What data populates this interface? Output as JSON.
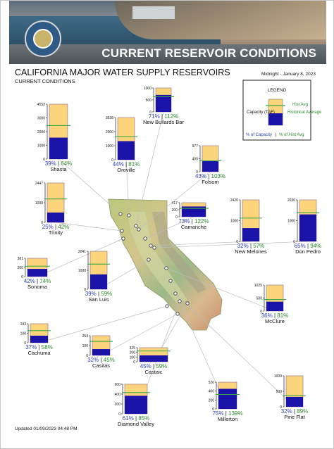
{
  "header": {
    "banner_title": "CURRENT RESERVOIR CONDITIONS",
    "seal_icon": "dwr-seal-icon"
  },
  "page": {
    "title": "CALIFORNIA MAJOR WATER SUPPLY RESERVOIRS",
    "subtitle": "CURRENT CONDITIONS",
    "date": "Midnight - January 8, 2023",
    "updated": "Updated 01/09/2023 04:48 PM"
  },
  "legend": {
    "title": "LEGEND",
    "hist_avg": "Hist Avg",
    "historical_average": "Historical Average",
    "capacity": "Capacity (TAF)",
    "pct_capacity": "% of Capacity",
    "separator": "|",
    "pct_hist_avg": "% of Hist Avg"
  },
  "colors": {
    "capacity_fill": "#fbd47c",
    "storage_fill": "#1b12a8",
    "hist_avg_line": "#3aa844",
    "pct_capacity_text": "#2d3fb5",
    "pct_hist_text": "#2c8a2c"
  },
  "chart_data": {
    "type": "bar",
    "unit": "TAF",
    "reservoirs": [
      {
        "name": "Shasta",
        "capacity": 4552,
        "ticks": [
          "4552",
          "3000",
          "2000",
          "1000",
          "0"
        ],
        "pct_capacity": 39,
        "pct_hist_avg": 64,
        "pct_capacity_label": "39%",
        "pct_hist_label": "64%"
      },
      {
        "name": "Oroville",
        "capacity": 3538,
        "ticks": [
          "3538",
          "2000",
          "1000",
          "0"
        ],
        "pct_capacity": 44,
        "pct_hist_avg": 81,
        "pct_capacity_label": "44%",
        "pct_hist_label": "81%"
      },
      {
        "name": "New Bullards Bar",
        "capacity": 1000,
        "ticks": [
          "1000",
          "500",
          "0"
        ],
        "pct_capacity": 71,
        "pct_hist_avg": 112,
        "pct_capacity_label": "71%",
        "pct_hist_label": "112%"
      },
      {
        "name": "Folsom",
        "capacity": 977,
        "ticks": [
          "977",
          "400",
          "0"
        ],
        "pct_capacity": 43,
        "pct_hist_avg": 103,
        "pct_capacity_label": "43%",
        "pct_hist_label": "103%"
      },
      {
        "name": "Trinity",
        "capacity": 2447,
        "ticks": [
          "2447",
          "1000",
          "0"
        ],
        "pct_capacity": 25,
        "pct_hist_avg": 42,
        "pct_capacity_label": "25%",
        "pct_hist_label": "42%"
      },
      {
        "name": "Camanche",
        "capacity": 417,
        "ticks": [
          "417",
          "200",
          "0"
        ],
        "pct_capacity": 73,
        "pct_hist_avg": 122,
        "pct_capacity_label": "73%",
        "pct_hist_label": "122%"
      },
      {
        "name": "New Melones",
        "capacity": 2420,
        "ticks": [
          "2420",
          "1000",
          "0"
        ],
        "pct_capacity": 32,
        "pct_hist_avg": 57,
        "pct_capacity_label": "32%",
        "pct_hist_label": "57%"
      },
      {
        "name": "Don Pedro",
        "capacity": 2030,
        "ticks": [
          "2030",
          "1000",
          "0"
        ],
        "pct_capacity": 65,
        "pct_hist_avg": 94,
        "pct_capacity_label": "65%",
        "pct_hist_label": "94%"
      },
      {
        "name": "Sonoma",
        "capacity": 381,
        "ticks": [
          "381",
          "200",
          "0"
        ],
        "pct_capacity": 42,
        "pct_hist_avg": 74,
        "pct_capacity_label": "42%",
        "pct_hist_label": "74%"
      },
      {
        "name": "San Luis",
        "capacity": 2041,
        "ticks": [
          "2041",
          "1000",
          "0"
        ],
        "pct_capacity": 39,
        "pct_hist_avg": 59,
        "pct_capacity_label": "39%",
        "pct_hist_label": "59%"
      },
      {
        "name": "McClure",
        "capacity": 1025,
        "ticks": [
          "1025",
          "500",
          "0"
        ],
        "pct_capacity": 36,
        "pct_hist_avg": 81,
        "pct_capacity_label": "36%",
        "pct_hist_label": "81%"
      },
      {
        "name": "Cachuma",
        "capacity": 193,
        "ticks": [
          "193",
          "100",
          "0"
        ],
        "pct_capacity": 37,
        "pct_hist_avg": 58,
        "pct_capacity_label": "37%",
        "pct_hist_label": "58%"
      },
      {
        "name": "Casitas",
        "capacity": 254,
        "ticks": [
          "254",
          "100",
          "0"
        ],
        "pct_capacity": 32,
        "pct_hist_avg": 45,
        "pct_capacity_label": "32%",
        "pct_hist_label": "45%"
      },
      {
        "name": "Castaic",
        "capacity": 325,
        "ticks": [
          "325",
          "200",
          "100",
          "0"
        ],
        "pct_capacity": 45,
        "pct_hist_avg": 59,
        "pct_capacity_label": "45%",
        "pct_hist_label": "59%"
      },
      {
        "name": "Diamond Valley",
        "capacity": 810,
        "ticks": [
          "600",
          "400",
          "200",
          "0"
        ],
        "pct_capacity": 61,
        "pct_hist_avg": 85,
        "pct_capacity_label": "61%",
        "pct_hist_label": "85%"
      },
      {
        "name": "Millerton",
        "capacity": 520,
        "ticks": [
          "520",
          "400",
          "200",
          "0"
        ],
        "pct_capacity": 75,
        "pct_hist_avg": 139,
        "pct_capacity_label": "75%",
        "pct_hist_label": "139%"
      },
      {
        "name": "Pine Flat",
        "capacity": 1000,
        "ticks": [
          "1000",
          "500",
          "0"
        ],
        "pct_capacity": 32,
        "pct_hist_avg": 89,
        "pct_capacity_label": "32%",
        "pct_hist_label": "89%"
      }
    ]
  }
}
